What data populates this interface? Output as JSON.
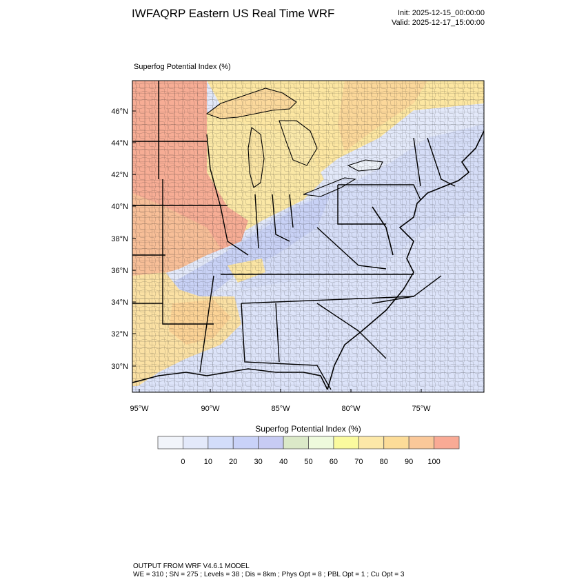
{
  "header": {
    "title": "IWFAQRP Eastern US Real Time WRF",
    "init": "Init: 2025-12-15_00:00:00",
    "valid": "Valid: 2025-12-17_15:00:00"
  },
  "map": {
    "field_label": "Superfog Potential Index   (%)",
    "lat_labels": [
      "46°N",
      "44°N",
      "42°N",
      "40°N",
      "38°N",
      "36°N",
      "34°N",
      "32°N",
      "30°N"
    ],
    "lon_labels": [
      "95°W",
      "90°W",
      "85°W",
      "80°W",
      "75°W"
    ],
    "region_values": {
      "upper_midwest": 100,
      "great_lakes": 75,
      "ohio_valley": 35,
      "appalachian_east": 15,
      "southeast": 10,
      "lower_mississippi": 80,
      "ontario_north": 75,
      "atlantic": 5
    }
  },
  "colorbar": {
    "title": "Superfog Potential Index  (%)",
    "labels": [
      "0",
      "10",
      "20",
      "30",
      "40",
      "50",
      "60",
      "70",
      "80",
      "90",
      "100"
    ],
    "colors": [
      "#f1f4fa",
      "#e3e9fa",
      "#d3ddfa",
      "#c9d2f8",
      "#c7cbf3",
      "#dbe9c8",
      "#eefadc",
      "#fafa9e",
      "#fce8a8",
      "#fcdc98",
      "#fac899",
      "#f9aa95"
    ]
  },
  "footer": {
    "line1": "OUTPUT FROM WRF V4.6.1 MODEL",
    "line2": "WE = 310 ; SN = 275 ; Levels = 38 ; Dis = 8km ; Phys Opt = 8 ; PBL Opt = 1 ; Cu Opt = 3"
  }
}
